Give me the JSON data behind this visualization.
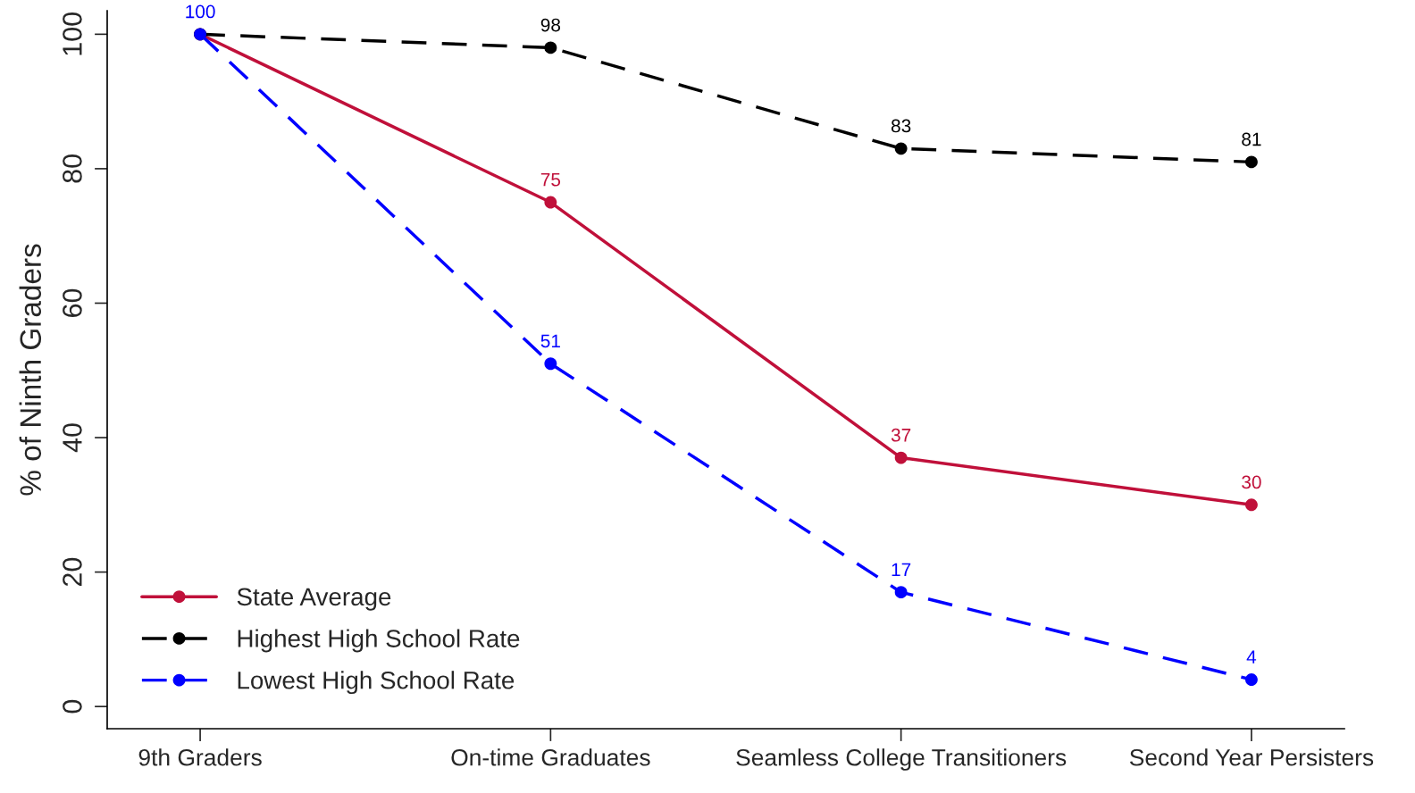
{
  "chart_data": {
    "type": "line",
    "ylabel": "% of Ninth Graders",
    "categories": [
      "9th Graders",
      "On-time Graduates",
      "Seamless College Transitioners",
      "Second Year Persisters"
    ],
    "series": [
      {
        "name": "State Average",
        "color": "#c0103a",
        "line_style": "solid",
        "values": [
          100,
          75,
          37,
          30
        ],
        "value_labels": [
          null,
          "75",
          "37",
          "30"
        ]
      },
      {
        "name": "Highest High School Rate",
        "color": "#000000",
        "line_style": "dashed",
        "values": [
          100,
          98,
          83,
          81
        ],
        "value_labels": [
          null,
          "98",
          "83",
          "81"
        ]
      },
      {
        "name": "Lowest High School Rate",
        "color": "#0000ff",
        "line_style": "dashed",
        "values": [
          100,
          51,
          17,
          4
        ],
        "value_labels": [
          "100",
          "51",
          "17",
          "4"
        ]
      }
    ],
    "ylim": [
      -3.3,
      103.5
    ],
    "yticks": [
      0,
      20,
      40,
      60,
      80,
      100
    ],
    "grid": false,
    "legend": "bottom left",
    "marker": "circle"
  }
}
